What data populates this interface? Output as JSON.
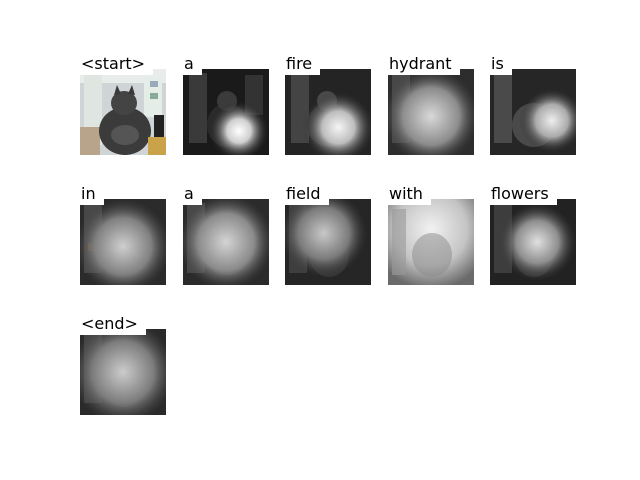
{
  "tokens": [
    {
      "word": "<start>",
      "kind": "original"
    },
    {
      "word": "a",
      "kind": "attention"
    },
    {
      "word": "fire",
      "kind": "attention"
    },
    {
      "word": "hydrant",
      "kind": "attention"
    },
    {
      "word": "is",
      "kind": "attention"
    },
    {
      "word": "in",
      "kind": "attention"
    },
    {
      "word": "a",
      "kind": "attention"
    },
    {
      "word": "field",
      "kind": "attention"
    },
    {
      "word": "with",
      "kind": "attention"
    },
    {
      "word": "flowers",
      "kind": "attention"
    },
    {
      "word": "<end>",
      "kind": "attention"
    }
  ]
}
